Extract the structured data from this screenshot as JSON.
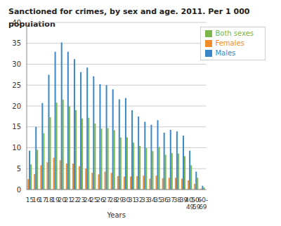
{
  "chart_data": {
    "type": "bar",
    "title": "Sanctioned for crimes, by sex and age. 2011. Per 1 000 population",
    "x_label": "Years",
    "categories": [
      "15",
      "16",
      "17",
      "18",
      "19",
      "20",
      "21",
      "22",
      "23",
      "24",
      "25",
      "26",
      "27",
      "28",
      "29",
      "30",
      "31",
      "32",
      "33",
      "34",
      "35",
      "36",
      "37",
      "38",
      "39",
      "40-49",
      "50-59",
      "60-69"
    ],
    "series": [
      {
        "name": "Females",
        "color": "#f28c28",
        "values": [
          2.5,
          3.7,
          5.8,
          6.5,
          7.6,
          7.0,
          6.2,
          6.2,
          5.6,
          5.0,
          4.0,
          3.6,
          4.3,
          4.0,
          3.2,
          3.1,
          3.1,
          3.2,
          3.3,
          2.6,
          3.3,
          2.7,
          2.8,
          2.8,
          2.6,
          2.2,
          1.4,
          0.2
        ]
      },
      {
        "name": "Males",
        "color": "#3a87c8",
        "values": [
          9.3,
          15.0,
          20.7,
          27.5,
          33.0,
          35.2,
          33.0,
          31.2,
          28.1,
          29.2,
          27.1,
          25.2,
          25.0,
          24.0,
          21.6,
          21.9,
          19.0,
          17.5,
          16.2,
          15.5,
          16.6,
          13.6,
          14.3,
          13.9,
          12.9,
          9.3,
          4.3,
          0.9
        ]
      },
      {
        "name": "Both sexes",
        "color": "#7ab648",
        "values": [
          6.0,
          9.5,
          13.5,
          17.3,
          20.8,
          21.5,
          19.9,
          19.0,
          17.0,
          17.2,
          15.8,
          14.6,
          14.7,
          14.2,
          12.5,
          12.5,
          11.2,
          10.4,
          9.9,
          9.2,
          10.2,
          8.3,
          8.7,
          8.6,
          8.0,
          5.8,
          2.8,
          0.5
        ]
      }
    ],
    "ylim": [
      0,
      40
    ],
    "yticks": [
      0,
      5,
      10,
      15,
      20,
      25,
      30,
      35,
      40
    ],
    "grid": true,
    "legend": "top right"
  }
}
